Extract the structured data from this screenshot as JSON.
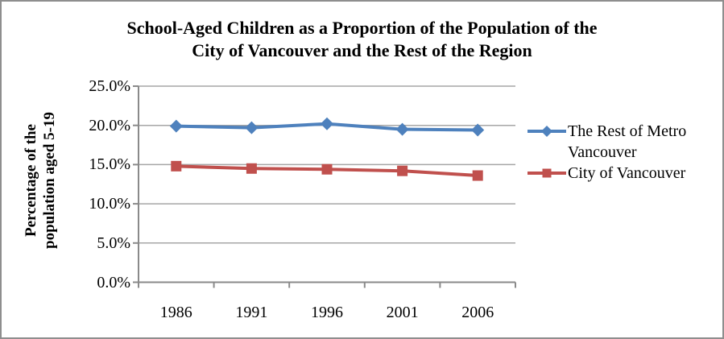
{
  "chart_data": {
    "type": "line",
    "title": "School-Aged Children as a Proportion of the Population of the City of Vancouver and the Rest of the Region",
    "title_lines": [
      "School-Aged Children as a Proportion of the Population of the",
      "City of Vancouver and the Rest of the Region"
    ],
    "ylabel": "Percentage of the population aged 5-19",
    "ylabel_lines": [
      "Percentage of the",
      "population aged 5-19"
    ],
    "categories": [
      "1986",
      "1991",
      "1996",
      "2001",
      "2006"
    ],
    "series": [
      {
        "name": "The Rest of Metro Vancouver",
        "color": "#4E81BD",
        "marker": "diamond",
        "values": [
          19.9,
          19.7,
          20.2,
          19.5,
          19.4
        ]
      },
      {
        "name": "City of Vancouver",
        "color": "#C0504D",
        "marker": "square",
        "values": [
          14.8,
          14.5,
          14.4,
          14.2,
          13.6
        ]
      }
    ],
    "y_axis": {
      "min": 0,
      "max": 25,
      "step": 5,
      "tick_labels": [
        "0.0%",
        "5.0%",
        "10.0%",
        "15.0%",
        "20.0%",
        "25.0%"
      ]
    },
    "grid": true,
    "legend_position": "right",
    "axis_color": "#8A8A8A",
    "gridline_color": "#A6A6A6",
    "text_color": "#000000"
  }
}
